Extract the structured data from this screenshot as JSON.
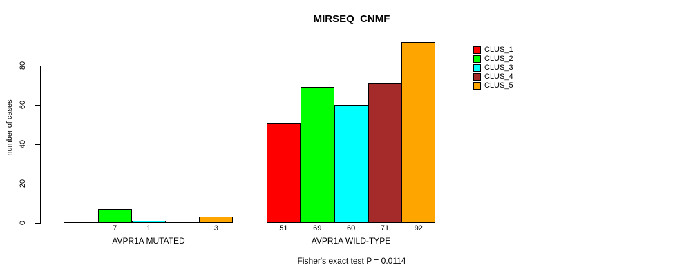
{
  "chart_data": {
    "type": "bar",
    "title": "MIRSEQ_CNMF",
    "ylabel": "number of cases",
    "footnote": "Fisher's exact test P = 0.0114",
    "categories": [
      "AVPR1A MUTATED",
      "AVPR1A WILD-TYPE"
    ],
    "yticks": [
      0,
      20,
      40,
      60,
      80
    ],
    "ylim": [
      0,
      92
    ],
    "grid": false,
    "legend_position": "right",
    "series": [
      {
        "name": "CLUS_1",
        "color": "#FF0000",
        "values": [
          0,
          51
        ]
      },
      {
        "name": "CLUS_2",
        "color": "#00FF00",
        "values": [
          7,
          69
        ]
      },
      {
        "name": "CLUS_3",
        "color": "#00FFFF",
        "values": [
          1,
          60
        ]
      },
      {
        "name": "CLUS_4",
        "color": "#A52A2A",
        "values": [
          0,
          71
        ]
      },
      {
        "name": "CLUS_5",
        "color": "#FFA500",
        "values": [
          3,
          92
        ]
      }
    ],
    "value_labels_shown": [
      [
        "7",
        "1",
        "3"
      ],
      [
        "51",
        "69",
        "60",
        "71",
        "92"
      ]
    ]
  }
}
